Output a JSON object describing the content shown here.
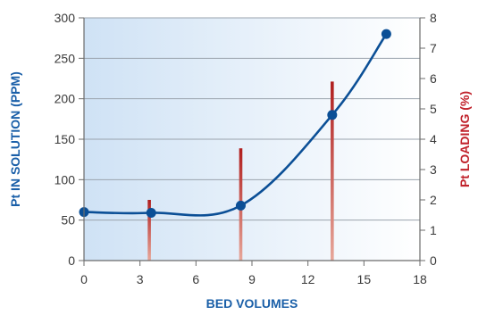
{
  "chart_data": {
    "type": "line",
    "title": "",
    "xlabel": "BED VOLUMES",
    "ylabel": "Pt IN SOLUTION (PPM)",
    "y2label": "Pt LOADING (%)",
    "xlim": [
      0,
      18
    ],
    "ylim": [
      0,
      300
    ],
    "y2lim": [
      0,
      8
    ],
    "xticks": [
      "0",
      "3",
      "6",
      "9",
      "12",
      "15",
      "18"
    ],
    "yticks": [
      "0",
      "50",
      "100",
      "150",
      "200",
      "250",
      "300"
    ],
    "y2ticks": [
      "0",
      "1",
      "2",
      "3",
      "4",
      "5",
      "6",
      "7",
      "8"
    ],
    "grid": true,
    "series": [
      {
        "type": "line",
        "axis": "left",
        "points": [
          {
            "x": 0,
            "y": 60
          },
          {
            "x": 3.6,
            "y": 59
          },
          {
            "x": 8.4,
            "y": 68
          },
          {
            "x": 13.3,
            "y": 180
          },
          {
            "x": 16.2,
            "y": 280
          }
        ]
      },
      {
        "type": "bar",
        "axis": "right",
        "points": [
          {
            "x": 3.5,
            "y": 2.0
          },
          {
            "x": 8.4,
            "y": 3.7
          },
          {
            "x": 13.3,
            "y": 5.9
          }
        ]
      }
    ],
    "colors": {
      "line": "#0b4f96",
      "bar_top": "#b01e1e",
      "bar_bottom": "#e7a79a",
      "left_axis_title": "#1a5fa8",
      "right_axis_title": "#c1232c",
      "x_axis_title": "#1a5fa8",
      "plot_bg_left": "#cfe2f5",
      "plot_bg_right": "#ffffff"
    }
  }
}
